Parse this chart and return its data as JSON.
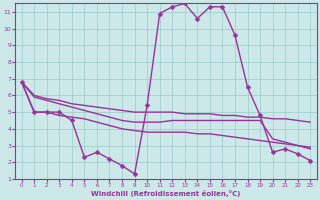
{
  "title": "",
  "xlabel": "Windchill (Refroidissement éolien,°C)",
  "ylabel": "",
  "bg_color": "#cce8e8",
  "grid_color": "#99cccc",
  "line_color": "#993399",
  "xlim": [
    -0.5,
    23.5
  ],
  "ylim": [
    1,
    11.5
  ],
  "xticks": [
    0,
    1,
    2,
    3,
    4,
    5,
    6,
    7,
    8,
    9,
    10,
    11,
    12,
    13,
    14,
    15,
    16,
    17,
    18,
    19,
    20,
    21,
    22,
    23
  ],
  "yticks": [
    1,
    2,
    3,
    4,
    5,
    6,
    7,
    8,
    9,
    10,
    11
  ],
  "series": [
    {
      "x": [
        0,
        1,
        2,
        3,
        4,
        5,
        6,
        7,
        8,
        9,
        10,
        11,
        12,
        13,
        14,
        15,
        16,
        17,
        18,
        19,
        20,
        21,
        22,
        23
      ],
      "y": [
        6.8,
        5.0,
        5.0,
        5.0,
        4.5,
        2.3,
        2.6,
        2.2,
        1.8,
        1.3,
        5.4,
        10.9,
        11.3,
        11.5,
        10.6,
        11.3,
        11.3,
        9.6,
        6.5,
        4.8,
        2.6,
        2.8,
        2.5,
        2.1
      ],
      "marker": "D",
      "markersize": 2.5,
      "linewidth": 1.0,
      "has_marker": true
    },
    {
      "x": [
        0,
        1,
        2,
        3,
        4,
        5,
        6,
        7,
        8,
        9,
        10,
        11,
        12,
        13,
        14,
        15,
        16,
        17,
        18,
        19,
        20,
        21,
        22,
        23
      ],
      "y": [
        6.8,
        6.0,
        5.8,
        5.7,
        5.5,
        5.4,
        5.3,
        5.2,
        5.1,
        5.0,
        5.0,
        5.0,
        5.0,
        4.9,
        4.9,
        4.9,
        4.8,
        4.8,
        4.7,
        4.7,
        4.6,
        4.6,
        4.5,
        4.4
      ],
      "marker": null,
      "markersize": 0,
      "linewidth": 1.0,
      "has_marker": false
    },
    {
      "x": [
        0,
        1,
        2,
        3,
        4,
        5,
        6,
        7,
        8,
        9,
        10,
        11,
        12,
        13,
        14,
        15,
        16,
        17,
        18,
        19,
        20,
        21,
        22,
        23
      ],
      "y": [
        6.8,
        5.0,
        5.0,
        4.8,
        4.7,
        4.6,
        4.4,
        4.2,
        4.0,
        3.9,
        3.8,
        3.8,
        3.8,
        3.8,
        3.7,
        3.7,
        3.6,
        3.5,
        3.4,
        3.3,
        3.2,
        3.1,
        3.0,
        2.9
      ],
      "marker": null,
      "markersize": 0,
      "linewidth": 1.0,
      "has_marker": false
    },
    {
      "x": [
        0,
        1,
        2,
        3,
        4,
        5,
        6,
        7,
        8,
        9,
        10,
        11,
        12,
        13,
        14,
        15,
        16,
        17,
        18,
        19,
        20,
        21,
        22,
        23
      ],
      "y": [
        6.8,
        5.9,
        5.7,
        5.5,
        5.3,
        5.1,
        4.9,
        4.7,
        4.5,
        4.4,
        4.4,
        4.4,
        4.5,
        4.5,
        4.5,
        4.5,
        4.5,
        4.5,
        4.5,
        4.5,
        3.4,
        3.2,
        3.0,
        2.8
      ],
      "marker": null,
      "markersize": 0,
      "linewidth": 1.0,
      "has_marker": false
    }
  ]
}
